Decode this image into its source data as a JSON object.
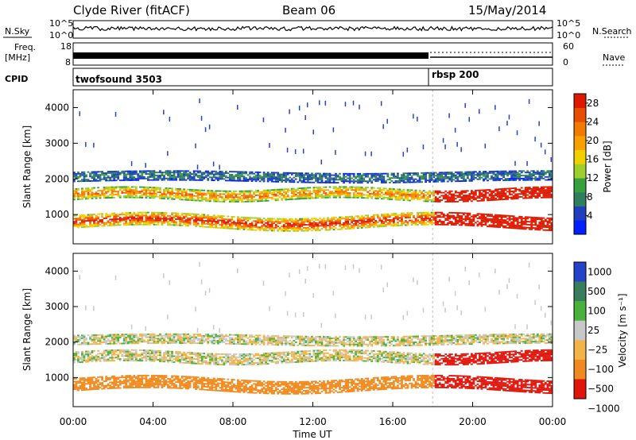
{
  "header": {
    "station": "Clyde River (fitACF)",
    "beam": "Beam 06",
    "date": "15/May/2014"
  },
  "side_labels": {
    "nsky": "N.Sky",
    "freq": "Freq.",
    "freq_unit": "[MHz]",
    "cpid": "CPID",
    "nsearch": "N.Search",
    "nave": "Nave"
  },
  "nsky_ticks": [
    "10^5",
    "10^0"
  ],
  "freq_ticks": [
    "18",
    "8"
  ],
  "nave_ticks": [
    "60",
    "0"
  ],
  "cpid_segments": [
    {
      "label": "twofsound 3503",
      "start": "00:00",
      "end": "18:00"
    },
    {
      "label": "rbsp 200",
      "start": "18:00",
      "end": "24:00"
    }
  ],
  "colors": {
    "scale": [
      "#0020ff",
      "#1f3fbf",
      "#2f7f5f",
      "#37a03f",
      "#9fcf2f",
      "#f0d000",
      "#f7a000",
      "#f27a00",
      "#e84e00",
      "#dd1a00"
    ]
  },
  "chart_data": [
    {
      "type": "heatmap",
      "name": "power",
      "ylabel": "Slant Range [km]",
      "xlabel": "",
      "x_ticks": [
        "00:00",
        "04:00",
        "08:00",
        "12:00",
        "16:00",
        "20:00",
        "00:00"
      ],
      "x_range_hours": [
        0,
        24
      ],
      "y_ticks": [
        1000,
        2000,
        3000,
        4000
      ],
      "ylim": [
        180,
        4500
      ],
      "colorbar": {
        "label": "Power [dB]",
        "ticks": [
          "4",
          "8",
          "12",
          "16",
          "20",
          "24",
          "28"
        ],
        "range": [
          0,
          30
        ]
      }
    },
    {
      "type": "heatmap",
      "name": "velocity",
      "ylabel": "Slant Range [km]",
      "xlabel": "Time UT",
      "x_ticks": [
        "00:00",
        "04:00",
        "08:00",
        "12:00",
        "16:00",
        "20:00",
        "00:00"
      ],
      "x_range_hours": [
        0,
        24
      ],
      "y_ticks": [
        1000,
        2000,
        3000,
        4000
      ],
      "ylim": [
        180,
        4500
      ],
      "colorbar": {
        "label": "Velocity [m s⁻¹]",
        "ticks": [
          "1000",
          "500",
          "100",
          "25",
          "−25",
          "−100",
          "−500",
          "−1000"
        ]
      }
    }
  ]
}
